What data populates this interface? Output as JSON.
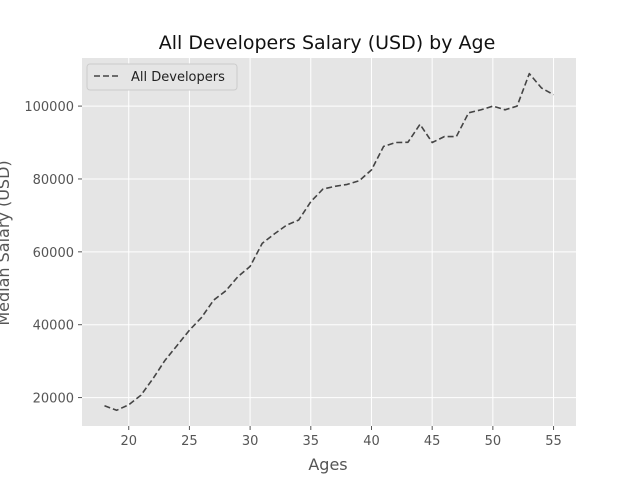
{
  "chart_data": {
    "type": "line",
    "title": "All Developers Salary (USD) by Age",
    "xlabel": "Ages",
    "ylabel": "Median Salary (USD)",
    "xlim": [
      16.15,
      56.85
    ],
    "ylim": [
      12200,
      113200
    ],
    "xticks": [
      20,
      25,
      30,
      35,
      40,
      45,
      50,
      55
    ],
    "yticks": [
      20000,
      40000,
      60000,
      80000,
      100000
    ],
    "grid": true,
    "legend_position": "upper-left",
    "colors": {
      "plot_background": "#e5e5e5",
      "grid": "#ffffff",
      "line": "#444444"
    },
    "series": [
      {
        "name": "All Developers",
        "line_style": "dashed",
        "x": [
          18,
          19,
          20,
          21,
          22,
          23,
          24,
          25,
          26,
          27,
          28,
          29,
          30,
          31,
          32,
          33,
          34,
          35,
          36,
          37,
          38,
          39,
          40,
          41,
          42,
          43,
          44,
          45,
          46,
          47,
          48,
          49,
          50,
          51,
          52,
          53,
          54,
          55
        ],
        "y": [
          17784,
          16500,
          18012,
          20628,
          25206,
          30252,
          34368,
          38496,
          42000,
          46752,
          49320,
          53200,
          56000,
          62316,
          64928,
          67317,
          68748,
          73752,
          77232,
          78000,
          78508,
          79536,
          82488,
          88935,
          90000,
          90056,
          95000,
          90000,
          91633,
          91660,
          98150,
          98964,
          100000,
          98988,
          100000,
          108923,
          105000,
          103117
        ]
      }
    ]
  }
}
